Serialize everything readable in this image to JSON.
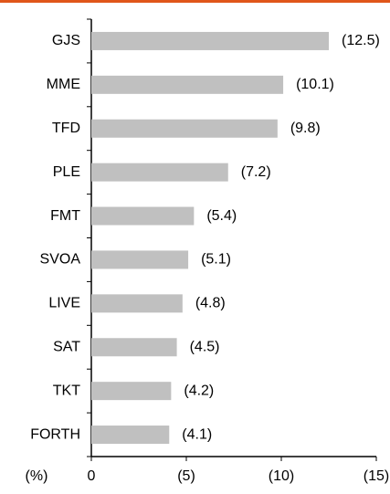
{
  "chart_data": {
    "type": "bar",
    "orientation": "horizontal",
    "x_label": "(%)",
    "categories": [
      "GJS",
      "MME",
      "TFD",
      "PLE",
      "FMT",
      "SVOA",
      "LIVE",
      "SAT",
      "TKT",
      "FORTH"
    ],
    "values": [
      -12.5,
      -10.1,
      -9.8,
      -7.2,
      -5.4,
      -5.1,
      -4.8,
      -4.5,
      -4.2,
      -4.1
    ],
    "value_labels": [
      "(12.5)",
      "(10.1)",
      "(9.8)",
      "(7.2)",
      "(5.4)",
      "(5.1)",
      "(4.8)",
      "(4.5)",
      "(4.2)",
      "(4.1)"
    ],
    "color": "#c0c0c0",
    "xlim": [
      0,
      -15
    ],
    "xticks": [
      0,
      {
        "value": -5,
        "label": "(5)"
      },
      {
        "value": -10,
        "label": "(10)"
      },
      {
        "value": -15,
        "label": "(15)"
      }
    ],
    "grid": false
  }
}
